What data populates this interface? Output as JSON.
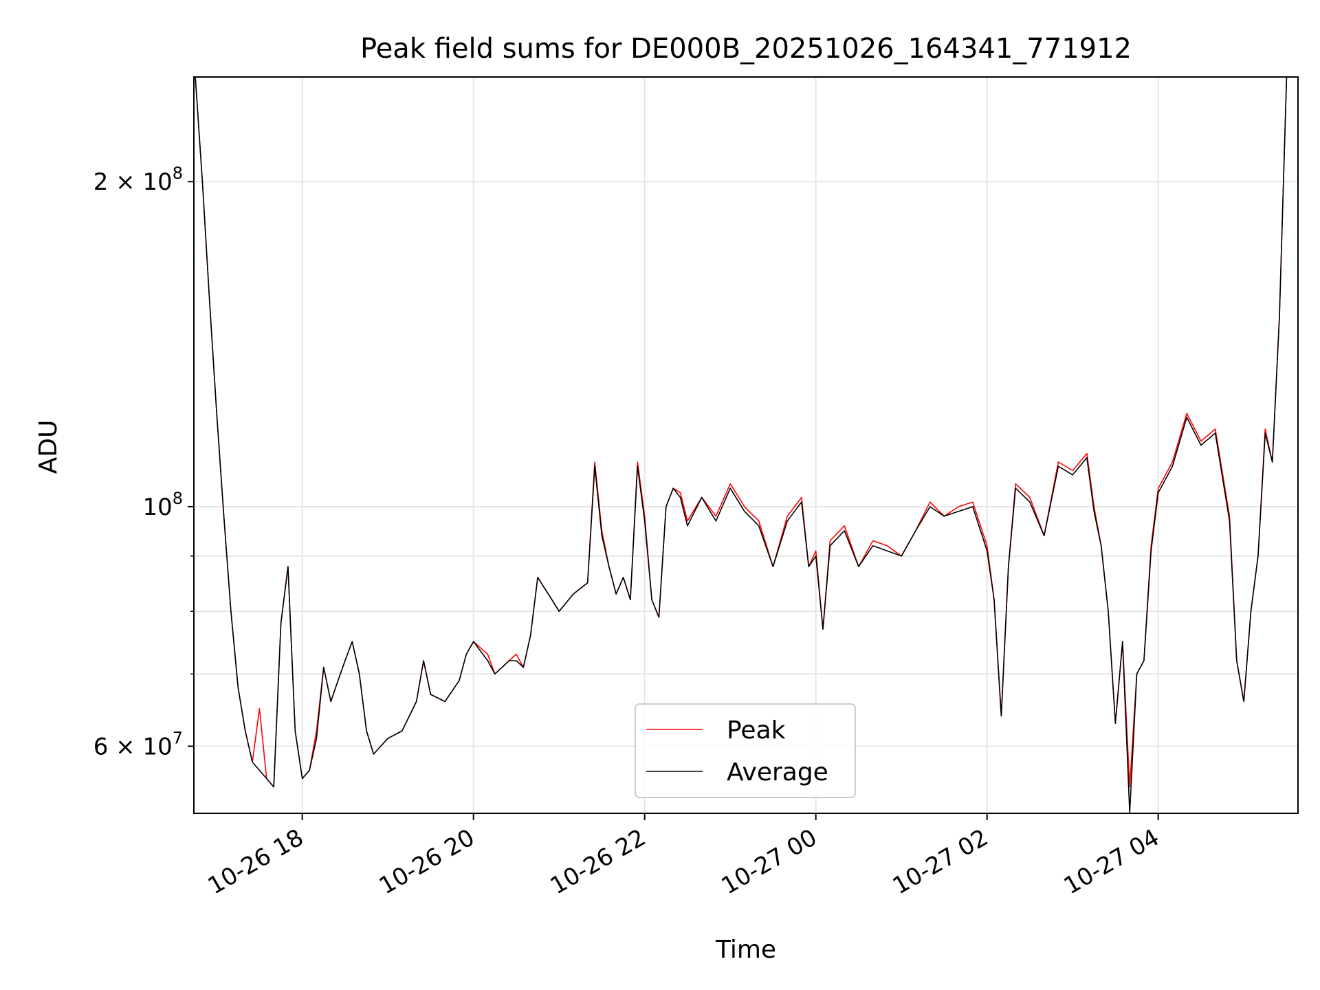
{
  "chart_data": {
    "type": "line",
    "title": "Peak field sums for DE000B_20251026_164341_771912",
    "xlabel": "Time",
    "ylabel": "ADU",
    "yscale": "log",
    "ylim": [
      52000000,
      250000000
    ],
    "xlim": [
      "2025-10-26 16:44",
      "2025-10-27 05:38"
    ],
    "grid": true,
    "legend_position": "lower center",
    "x_ticks": [
      {
        "value": "2025-10-26 18:00",
        "label": "10-26 18"
      },
      {
        "value": "2025-10-26 20:00",
        "label": "10-26 20"
      },
      {
        "value": "2025-10-26 22:00",
        "label": "10-26 22"
      },
      {
        "value": "2025-10-27 00:00",
        "label": "10-27 00"
      },
      {
        "value": "2025-10-27 02:00",
        "label": "10-27 02"
      },
      {
        "value": "2025-10-27 04:00",
        "label": "10-27 04"
      }
    ],
    "y_ticks": [
      {
        "value": 60000000,
        "label_mantissa": "6",
        "label_exp": "7"
      },
      {
        "value": 100000000,
        "label_mantissa": "",
        "label_exp": "8"
      },
      {
        "value": 200000000,
        "label_mantissa": "2",
        "label_exp": "8"
      }
    ],
    "y_minor_grid": [
      70000000,
      80000000,
      90000000
    ],
    "x": [
      "2025-10-26 16:45",
      "2025-10-26 16:50",
      "2025-10-26 16:55",
      "2025-10-26 17:00",
      "2025-10-26 17:05",
      "2025-10-26 17:10",
      "2025-10-26 17:15",
      "2025-10-26 17:20",
      "2025-10-26 17:25",
      "2025-10-26 17:30",
      "2025-10-26 17:35",
      "2025-10-26 17:40",
      "2025-10-26 17:45",
      "2025-10-26 17:50",
      "2025-10-26 17:55",
      "2025-10-26 18:00",
      "2025-10-26 18:05",
      "2025-10-26 18:10",
      "2025-10-26 18:15",
      "2025-10-26 18:20",
      "2025-10-26 18:25",
      "2025-10-26 18:30",
      "2025-10-26 18:35",
      "2025-10-26 18:40",
      "2025-10-26 18:45",
      "2025-10-26 18:50",
      "2025-10-26 18:55",
      "2025-10-26 19:00",
      "2025-10-26 19:10",
      "2025-10-26 19:20",
      "2025-10-26 19:25",
      "2025-10-26 19:30",
      "2025-10-26 19:40",
      "2025-10-26 19:50",
      "2025-10-26 19:55",
      "2025-10-26 20:00",
      "2025-10-26 20:10",
      "2025-10-26 20:15",
      "2025-10-26 20:25",
      "2025-10-26 20:30",
      "2025-10-26 20:35",
      "2025-10-26 20:40",
      "2025-10-26 20:45",
      "2025-10-26 20:55",
      "2025-10-26 21:00",
      "2025-10-26 21:10",
      "2025-10-26 21:15",
      "2025-10-26 21:20",
      "2025-10-26 21:25",
      "2025-10-26 21:30",
      "2025-10-26 21:35",
      "2025-10-26 21:40",
      "2025-10-26 21:45",
      "2025-10-26 21:50",
      "2025-10-26 21:55",
      "2025-10-26 22:00",
      "2025-10-26 22:05",
      "2025-10-26 22:10",
      "2025-10-26 22:15",
      "2025-10-26 22:20",
      "2025-10-26 22:25",
      "2025-10-26 22:30",
      "2025-10-26 22:40",
      "2025-10-26 22:50",
      "2025-10-26 23:00",
      "2025-10-26 23:10",
      "2025-10-26 23:20",
      "2025-10-26 23:30",
      "2025-10-26 23:40",
      "2025-10-26 23:50",
      "2025-10-26 23:55",
      "2025-10-27 00:00",
      "2025-10-27 00:05",
      "2025-10-27 00:10",
      "2025-10-27 00:20",
      "2025-10-27 00:30",
      "2025-10-27 00:40",
      "2025-10-27 00:50",
      "2025-10-27 01:00",
      "2025-10-27 01:10",
      "2025-10-27 01:20",
      "2025-10-27 01:30",
      "2025-10-27 01:40",
      "2025-10-27 01:50",
      "2025-10-27 02:00",
      "2025-10-27 02:05",
      "2025-10-27 02:10",
      "2025-10-27 02:15",
      "2025-10-27 02:20",
      "2025-10-27 02:30",
      "2025-10-27 02:40",
      "2025-10-27 02:50",
      "2025-10-27 03:00",
      "2025-10-27 03:10",
      "2025-10-27 03:15",
      "2025-10-27 03:20",
      "2025-10-27 03:25",
      "2025-10-27 03:30",
      "2025-10-27 03:35",
      "2025-10-27 03:40",
      "2025-10-27 03:45",
      "2025-10-27 03:50",
      "2025-10-27 03:55",
      "2025-10-27 04:00",
      "2025-10-27 04:10",
      "2025-10-27 04:20",
      "2025-10-27 04:30",
      "2025-10-27 04:40",
      "2025-10-27 04:50",
      "2025-10-27 04:55",
      "2025-10-27 05:00",
      "2025-10-27 05:05",
      "2025-10-27 05:10",
      "2025-10-27 05:15",
      "2025-10-27 05:20",
      "2025-10-27 05:25",
      "2025-10-27 05:30",
      "2025-10-27 05:35"
    ],
    "series": [
      {
        "name": "Peak",
        "color": "#ff0000",
        "values": [
          250000000,
          200000000,
          155000000,
          122000000,
          98000000,
          80000000,
          68000000,
          62000000,
          58000000,
          65000000,
          56000000,
          55000000,
          78000000,
          88000000,
          62000000,
          56000000,
          57000000,
          62000000,
          71000000,
          66000000,
          69000000,
          72000000,
          75000000,
          70000000,
          62000000,
          59000000,
          60000000,
          61000000,
          62000000,
          66000000,
          72000000,
          67000000,
          66000000,
          69000000,
          73000000,
          75000000,
          73000000,
          70000000,
          72000000,
          73000000,
          71000000,
          76000000,
          86000000,
          82000000,
          80000000,
          83000000,
          84000000,
          85000000,
          110000000,
          95000000,
          88000000,
          83000000,
          86000000,
          82000000,
          110000000,
          98000000,
          82000000,
          79000000,
          100000000,
          104000000,
          103000000,
          97000000,
          102000000,
          98000000,
          105000000,
          100000000,
          97000000,
          88000000,
          98000000,
          102000000,
          88000000,
          91000000,
          77000000,
          93000000,
          96000000,
          88000000,
          93000000,
          92000000,
          90000000,
          95000000,
          101000000,
          98000000,
          100000000,
          101000000,
          92000000,
          82000000,
          64000000,
          88000000,
          105000000,
          102000000,
          94000000,
          110000000,
          108000000,
          112000000,
          100000000,
          92000000,
          80000000,
          63000000,
          75000000,
          55000000,
          70000000,
          72000000,
          92000000,
          104000000,
          110000000,
          122000000,
          115000000,
          118000000,
          98000000,
          72000000,
          66000000,
          80000000,
          90000000,
          118000000,
          110000000,
          150000000,
          250000000,
          250000000
        ]
      },
      {
        "name": "Average",
        "color": "#000000",
        "values": [
          250000000,
          200000000,
          155000000,
          122000000,
          98000000,
          80000000,
          68000000,
          62000000,
          58000000,
          57000000,
          56000000,
          55000000,
          78000000,
          88000000,
          62000000,
          56000000,
          57000000,
          61000000,
          71000000,
          66000000,
          69000000,
          72000000,
          75000000,
          70000000,
          62000000,
          59000000,
          60000000,
          61000000,
          62000000,
          66000000,
          72000000,
          67000000,
          66000000,
          69000000,
          73000000,
          75000000,
          72000000,
          70000000,
          72000000,
          72000000,
          71000000,
          76000000,
          86000000,
          82000000,
          80000000,
          83000000,
          84000000,
          85000000,
          109000000,
          94000000,
          88000000,
          83000000,
          86000000,
          82000000,
          109000000,
          97000000,
          82000000,
          79000000,
          100000000,
          104000000,
          102000000,
          96000000,
          102000000,
          97000000,
          104000000,
          99000000,
          96000000,
          88000000,
          97000000,
          101000000,
          88000000,
          90000000,
          77000000,
          92000000,
          95000000,
          88000000,
          92000000,
          91000000,
          90000000,
          95000000,
          100000000,
          98000000,
          99000000,
          100000000,
          91000000,
          82000000,
          64000000,
          88000000,
          104000000,
          101000000,
          94000000,
          109000000,
          107000000,
          111000000,
          99000000,
          92000000,
          80000000,
          63000000,
          75000000,
          52000000,
          70000000,
          72000000,
          91000000,
          103000000,
          109000000,
          121000000,
          114000000,
          117000000,
          97000000,
          72000000,
          66000000,
          80000000,
          90000000,
          117000000,
          110000000,
          150000000,
          250000000,
          250000000
        ]
      }
    ]
  }
}
